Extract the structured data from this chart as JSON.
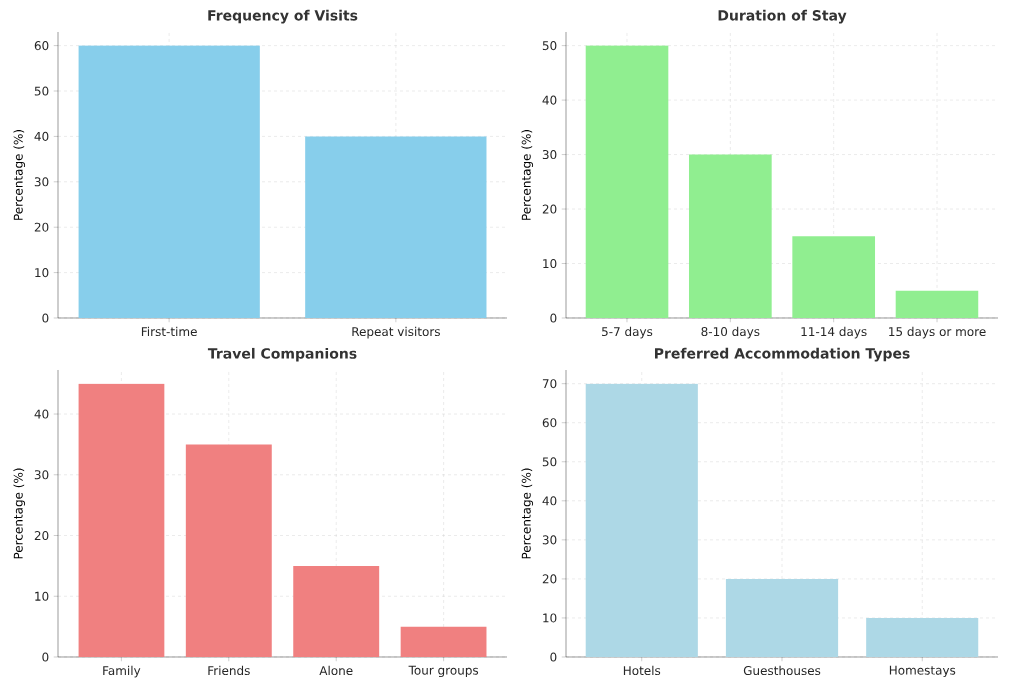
{
  "chart_data": [
    {
      "type": "bar",
      "title": "Frequency of Visits",
      "ylabel": "Percentage (%)",
      "categories": [
        "First-time",
        "Repeat visitors"
      ],
      "values": [
        60,
        40
      ],
      "color": "#87ceeb",
      "ylim": [
        0,
        63
      ],
      "yticks": [
        0,
        10,
        20,
        30,
        40,
        50,
        60
      ],
      "grid": true
    },
    {
      "type": "bar",
      "title": "Duration of Stay",
      "ylabel": "Percentage (%)",
      "categories": [
        "5-7 days",
        "8-10 days",
        "11-14 days",
        "15 days or more"
      ],
      "values": [
        50,
        30,
        15,
        5
      ],
      "color": "#90ee90",
      "ylim": [
        0,
        52.5
      ],
      "yticks": [
        0,
        10,
        20,
        30,
        40,
        50
      ],
      "grid": true
    },
    {
      "type": "bar",
      "title": "Travel Companions",
      "ylabel": "Percentage (%)",
      "categories": [
        "Family",
        "Friends",
        "Alone",
        "Tour groups"
      ],
      "values": [
        45,
        35,
        15,
        5
      ],
      "color": "#f08080",
      "ylim": [
        0,
        47.25
      ],
      "yticks": [
        0,
        10,
        20,
        30,
        40
      ],
      "grid": true
    },
    {
      "type": "bar",
      "title": "Preferred Accommodation Types",
      "ylabel": "Percentage (%)",
      "categories": [
        "Hotels",
        "Guesthouses",
        "Homestays"
      ],
      "values": [
        70,
        20,
        10
      ],
      "color": "#add8e6",
      "ylim": [
        0,
        73.5
      ],
      "yticks": [
        0,
        10,
        20,
        30,
        40,
        50,
        60,
        70
      ],
      "grid": true
    }
  ]
}
